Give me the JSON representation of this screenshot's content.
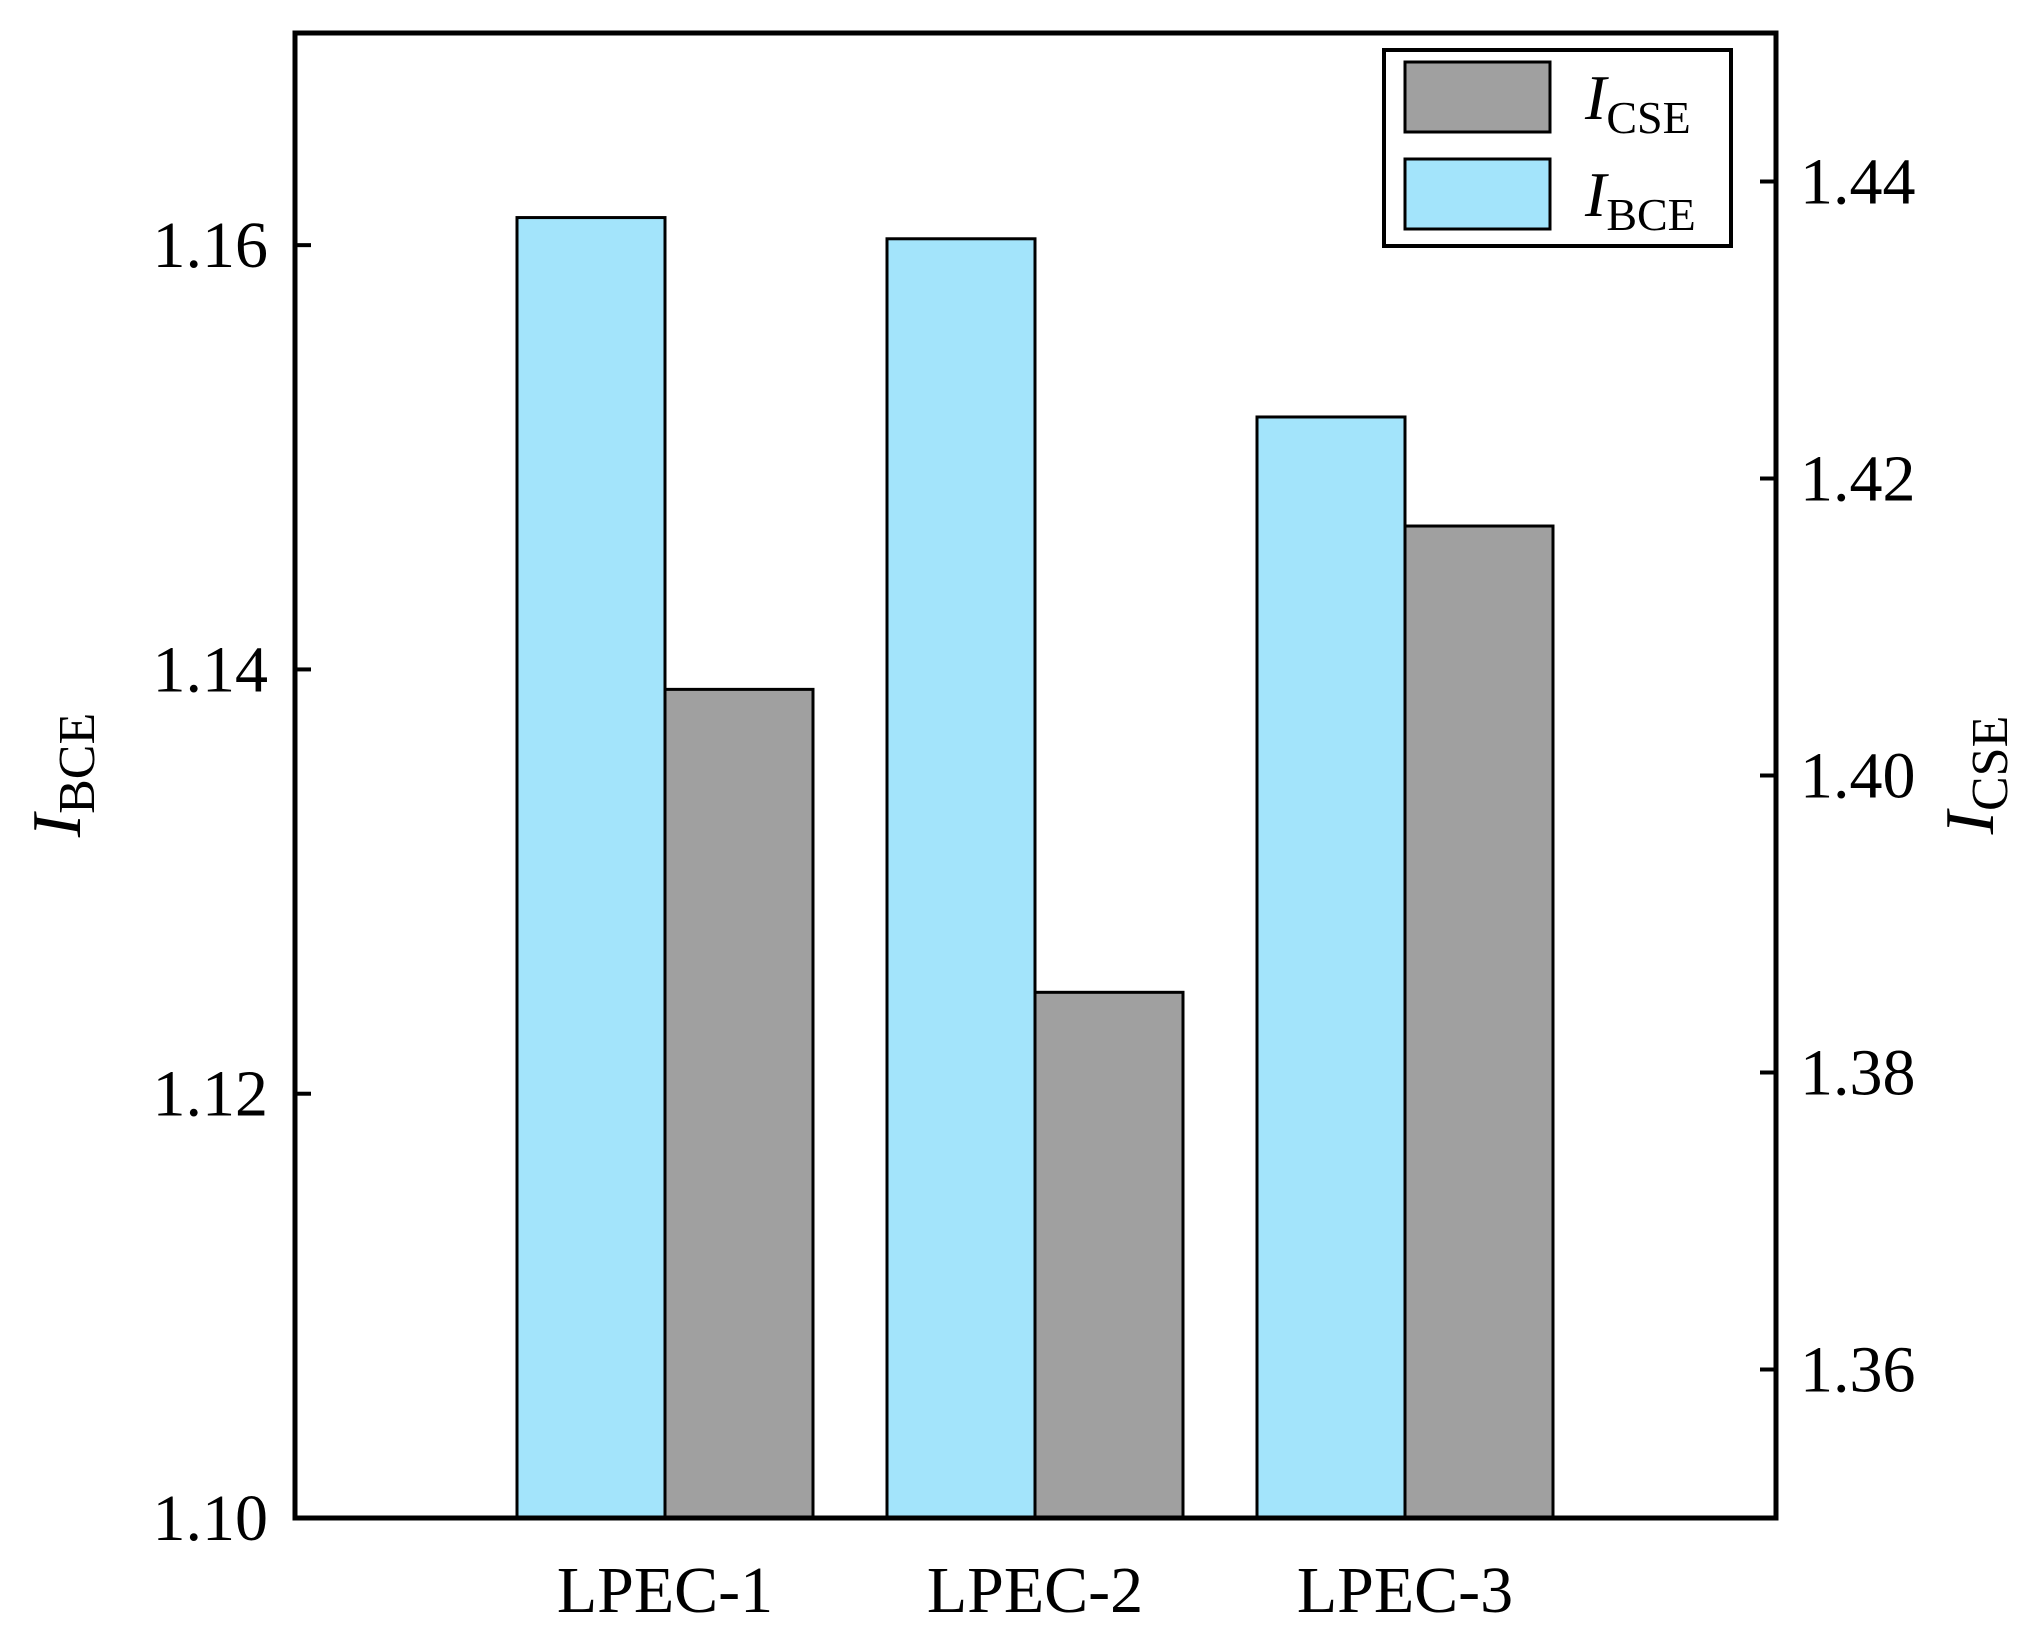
{
  "chart_data": {
    "type": "bar",
    "categories": [
      "LPEC-1",
      "LPEC-2",
      "LPEC-3"
    ],
    "series": [
      {
        "name": "I_BCE",
        "label_main": "I",
        "label_sub": "BCE",
        "axis": "left",
        "color": "#a3e4fb",
        "values": [
          1.1613,
          1.1603,
          1.1519
        ]
      },
      {
        "name": "I_CSE",
        "label_main": "I",
        "label_sub": "CSE",
        "axis": "right",
        "color": "#a0a0a0",
        "values": [
          1.4058,
          1.3854,
          1.4168
        ]
      }
    ],
    "left_axis": {
      "label_main": "I",
      "label_sub": "BCE",
      "ylim": [
        1.1,
        1.17
      ],
      "ticks": [
        "1.10",
        "1.12",
        "1.14",
        "1.16"
      ]
    },
    "right_axis": {
      "label_main": "I",
      "label_sub": "CSE",
      "ylim": [
        1.35,
        1.45
      ],
      "ticks": [
        "1.36",
        "1.38",
        "1.40",
        "1.42",
        "1.44"
      ]
    },
    "legend": {
      "placement": "top-right",
      "order": [
        "I_CSE",
        "I_BCE"
      ]
    },
    "grid": false
  }
}
